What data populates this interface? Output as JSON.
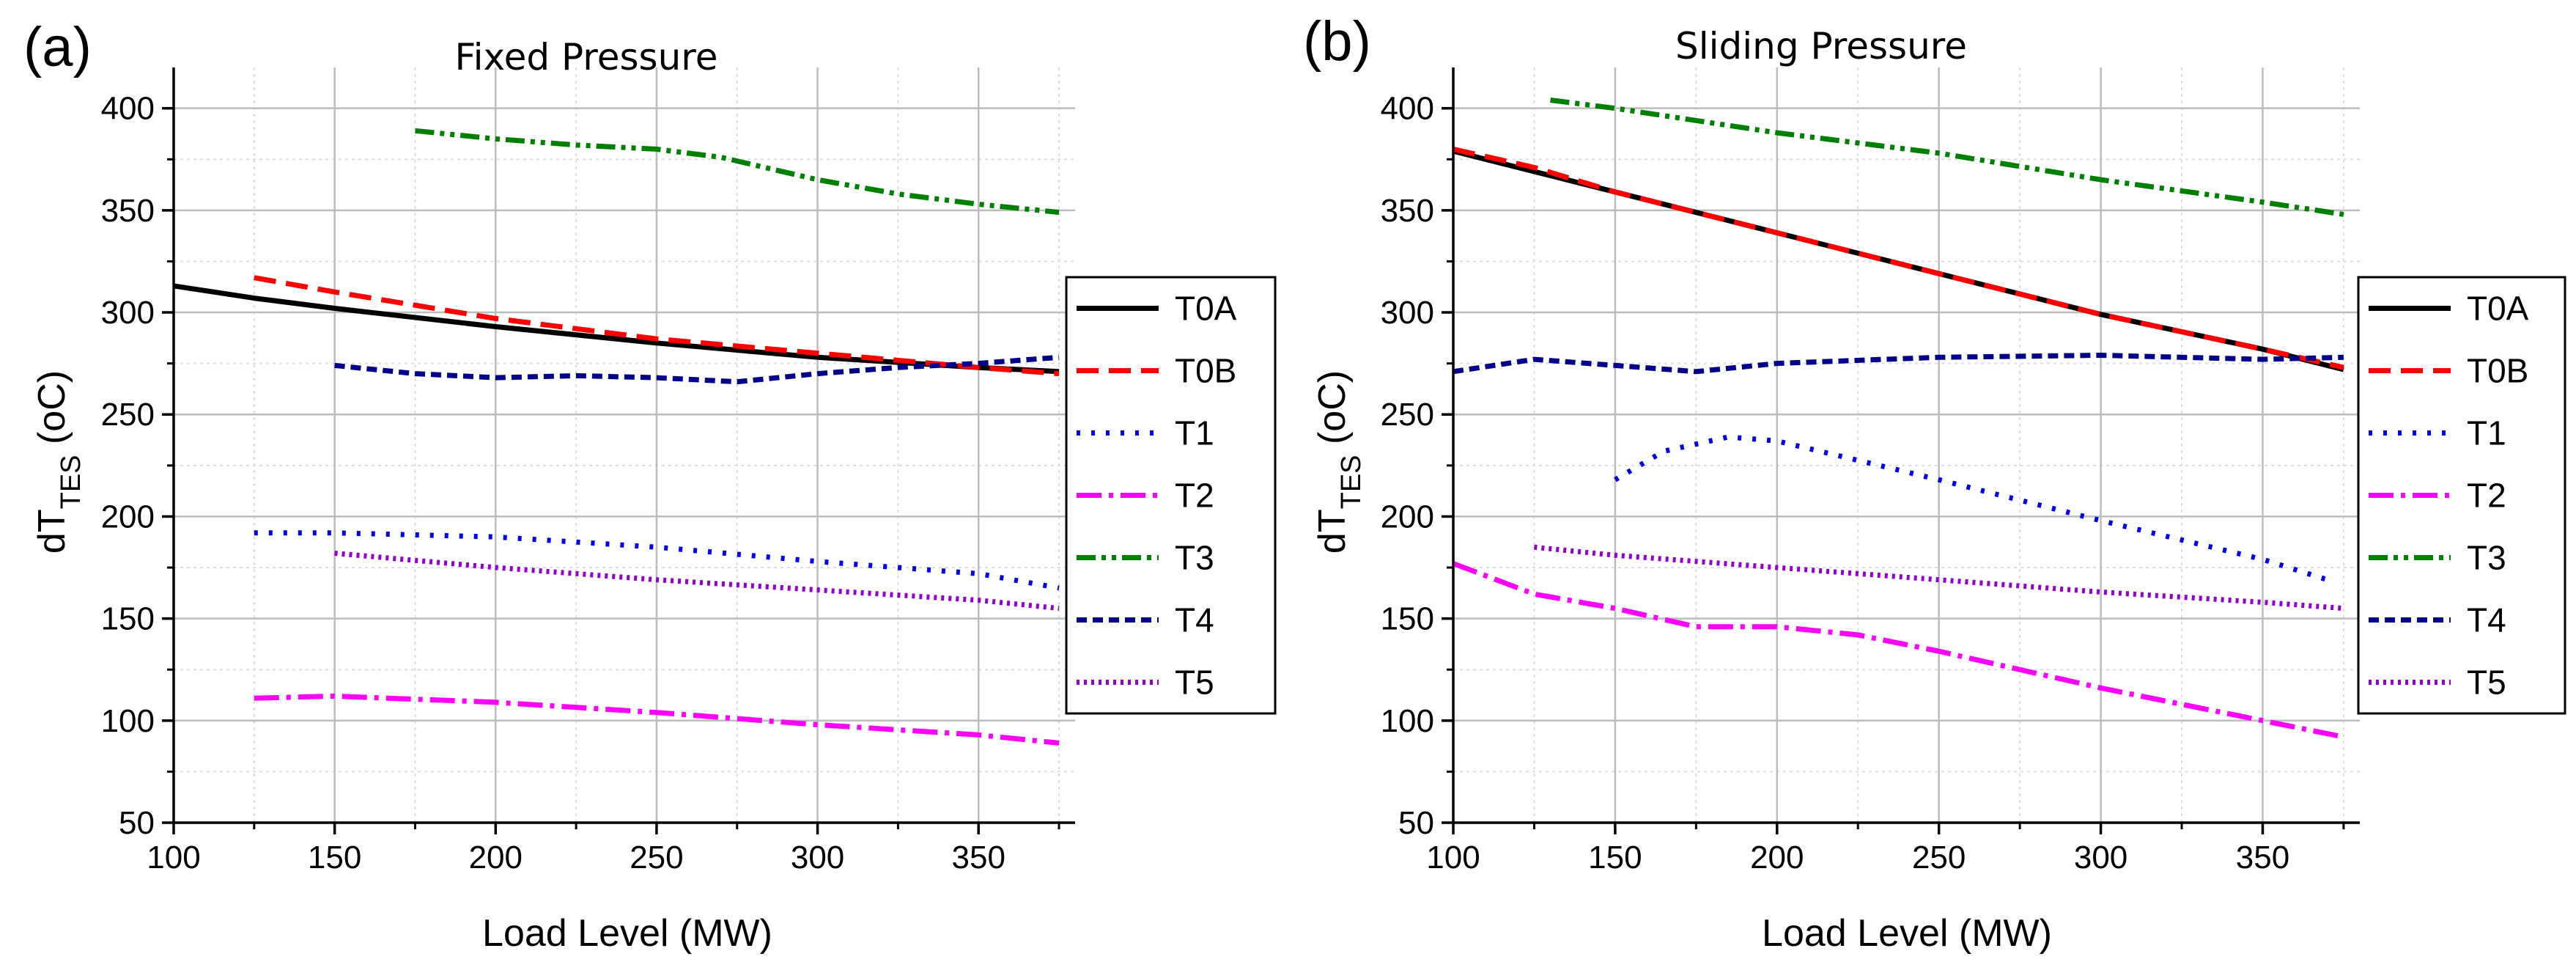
{
  "chart_data": [
    {
      "type": "line",
      "panel_label": "(a)",
      "title": "Fixed Pressure",
      "xlabel": "Load Level (MW)",
      "ylabel_main": "dT",
      "ylabel_sub": "TES",
      "ylabel_unit": " (oC)",
      "xlim": [
        100,
        380
      ],
      "ylim": [
        50,
        420
      ],
      "xticks": [
        100,
        150,
        200,
        250,
        300,
        350
      ],
      "yticks": [
        50,
        100,
        150,
        200,
        250,
        300,
        350,
        400
      ],
      "legend_position": "right",
      "series": [
        {
          "name": "T0A",
          "color": "#000000",
          "style": "solid",
          "x": [
            100,
            125,
            150,
            200,
            250,
            300,
            350,
            375
          ],
          "y": [
            313,
            307,
            302,
            293,
            285,
            278,
            273,
            271
          ]
        },
        {
          "name": "T0B",
          "color": "#ff0000",
          "style": "dash",
          "x": [
            125,
            150,
            200,
            250,
            300,
            350,
            375
          ],
          "y": [
            317,
            310,
            297,
            287,
            280,
            273,
            270
          ]
        },
        {
          "name": "T1",
          "color": "#0000ee",
          "style": "dot",
          "x": [
            125,
            150,
            200,
            250,
            300,
            350,
            375
          ],
          "y": [
            192,
            192,
            190,
            185,
            178,
            172,
            165
          ]
        },
        {
          "name": "T2",
          "color": "#ff00ff",
          "style": "dashdot",
          "x": [
            125,
            150,
            200,
            250,
            300,
            350,
            375
          ],
          "y": [
            111,
            112,
            109,
            104,
            98,
            93,
            89
          ]
        },
        {
          "name": "T3",
          "color": "#008000",
          "style": "dashdotdot",
          "x": [
            175,
            200,
            225,
            250,
            270,
            300,
            325,
            350,
            375
          ],
          "y": [
            389,
            385,
            382,
            380,
            376,
            365,
            358,
            353,
            349
          ]
        },
        {
          "name": "T4",
          "color": "#00008b",
          "style": "shortdash",
          "x": [
            150,
            175,
            200,
            225,
            250,
            275,
            300,
            325,
            350,
            375
          ],
          "y": [
            274,
            270,
            268,
            269,
            268,
            266,
            270,
            273,
            275,
            278
          ]
        },
        {
          "name": "T5",
          "color": "#9400d3",
          "style": "finedot",
          "x": [
            150,
            200,
            250,
            300,
            350,
            375
          ],
          "y": [
            182,
            175,
            169,
            164,
            159,
            155
          ]
        }
      ]
    },
    {
      "type": "line",
      "panel_label": "(b)",
      "title": "Sliding Pressure",
      "xlabel": "Load Level (MW)",
      "ylabel_main": "dT",
      "ylabel_sub": "TES",
      "ylabel_unit": " (oC)",
      "xlim": [
        100,
        380
      ],
      "ylim": [
        50,
        420
      ],
      "xticks": [
        100,
        150,
        200,
        250,
        300,
        350
      ],
      "yticks": [
        50,
        100,
        150,
        200,
        250,
        300,
        350,
        400
      ],
      "legend_position": "right",
      "series": [
        {
          "name": "T0A",
          "color": "#000000",
          "style": "solid",
          "x": [
            100,
            150,
            200,
            250,
            300,
            350,
            375
          ],
          "y": [
            379,
            359,
            339,
            319,
            299,
            282,
            272
          ]
        },
        {
          "name": "T0B",
          "color": "#ff0000",
          "style": "dash",
          "x": [
            100,
            125,
            150,
            200,
            250,
            300,
            350,
            375
          ],
          "y": [
            380,
            371,
            359,
            339,
            319,
            299,
            282,
            273
          ]
        },
        {
          "name": "T1",
          "color": "#0000ee",
          "style": "dot",
          "x": [
            150,
            165,
            185,
            200,
            250,
            300,
            350,
            370
          ],
          "y": [
            218,
            232,
            239,
            237,
            218,
            198,
            179,
            169
          ]
        },
        {
          "name": "T2",
          "color": "#ff00ff",
          "style": "dashdot",
          "x": [
            100,
            125,
            150,
            175,
            200,
            225,
            250,
            300,
            350,
            375
          ],
          "y": [
            177,
            162,
            155,
            146,
            146,
            142,
            134,
            116,
            100,
            92
          ]
        },
        {
          "name": "T3",
          "color": "#008000",
          "style": "dashdotdot",
          "x": [
            130,
            150,
            200,
            250,
            300,
            350,
            375
          ],
          "y": [
            404,
            400,
            388,
            378,
            365,
            354,
            348
          ]
        },
        {
          "name": "T4",
          "color": "#00008b",
          "style": "shortdash",
          "x": [
            100,
            125,
            150,
            175,
            200,
            250,
            300,
            350,
            375
          ],
          "y": [
            271,
            277,
            274,
            271,
            275,
            278,
            279,
            277,
            278
          ]
        },
        {
          "name": "T5",
          "color": "#9400d3",
          "style": "finedot",
          "x": [
            125,
            150,
            200,
            250,
            300,
            350,
            375
          ],
          "y": [
            185,
            181,
            175,
            169,
            163,
            158,
            155
          ]
        }
      ]
    }
  ]
}
